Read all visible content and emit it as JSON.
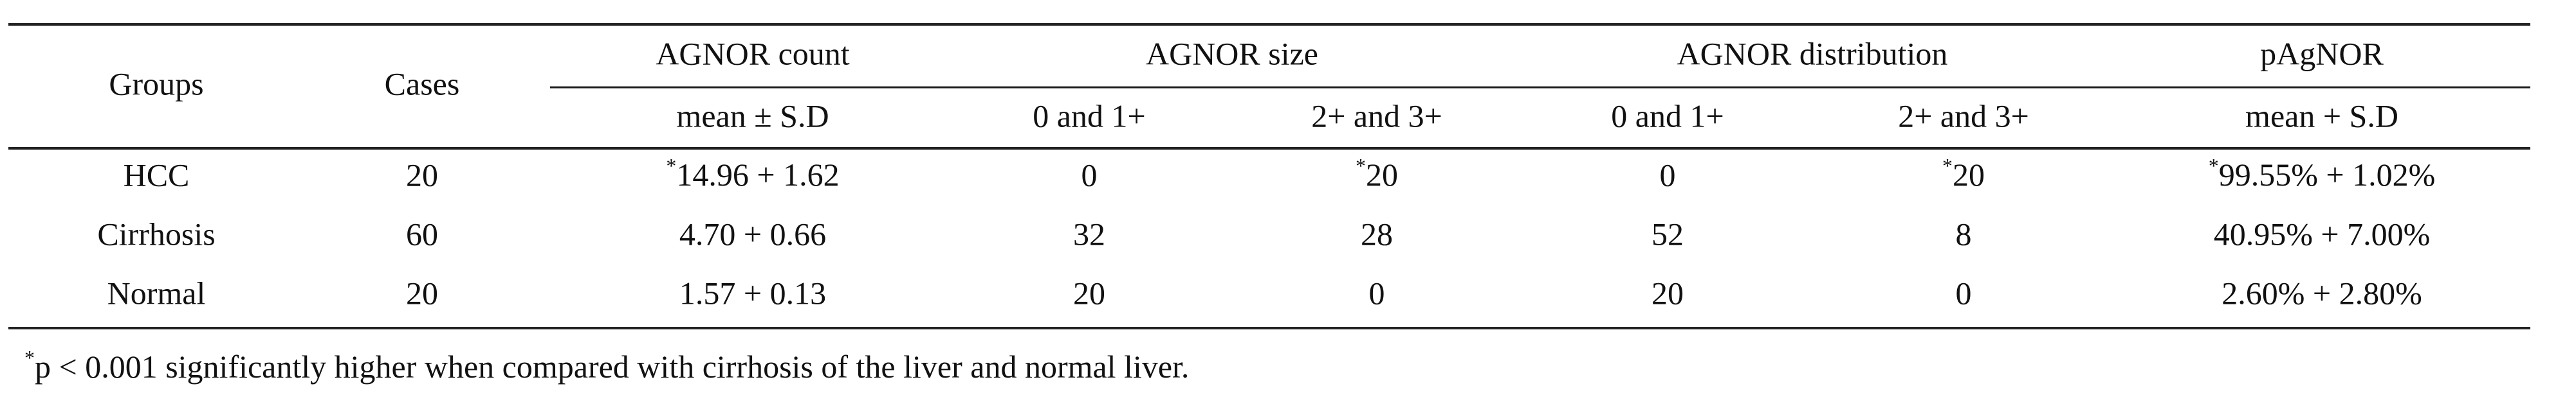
{
  "table": {
    "header": {
      "groups": "Groups",
      "cases": "Cases",
      "spans": [
        {
          "label": "AGNOR count",
          "sub": [
            "mean ± S.D"
          ]
        },
        {
          "label": "AGNOR size",
          "sub": [
            "0 and 1+",
            "2+ and 3+"
          ]
        },
        {
          "label": "AGNOR distribution",
          "sub": [
            "0 and 1+",
            "2+ and 3+"
          ]
        },
        {
          "label": "pAgNOR",
          "sub": [
            "mean + S.D"
          ]
        }
      ]
    },
    "rows": [
      [
        "HCC",
        "20",
        {
          "mark": "*",
          "text": "14.96 + 1.62"
        },
        "0",
        {
          "mark": "*",
          "text": "20"
        },
        "0",
        {
          "mark": "*",
          "text": "20"
        },
        {
          "mark": "*",
          "text": "99.55% + 1.02%"
        }
      ],
      [
        "Cirrhosis",
        "60",
        "4.70 + 0.66",
        "32",
        "28",
        "52",
        "8",
        "40.95% + 7.00%"
      ],
      [
        "Normal",
        "20",
        "1.57 + 0.13",
        "20",
        "0",
        "20",
        "0",
        "2.60% + 2.80%"
      ]
    ]
  },
  "footnote": {
    "mark": "*",
    "text": "p < 0.001 significantly higher when compared with cirrhosis of the liver and normal liver."
  }
}
